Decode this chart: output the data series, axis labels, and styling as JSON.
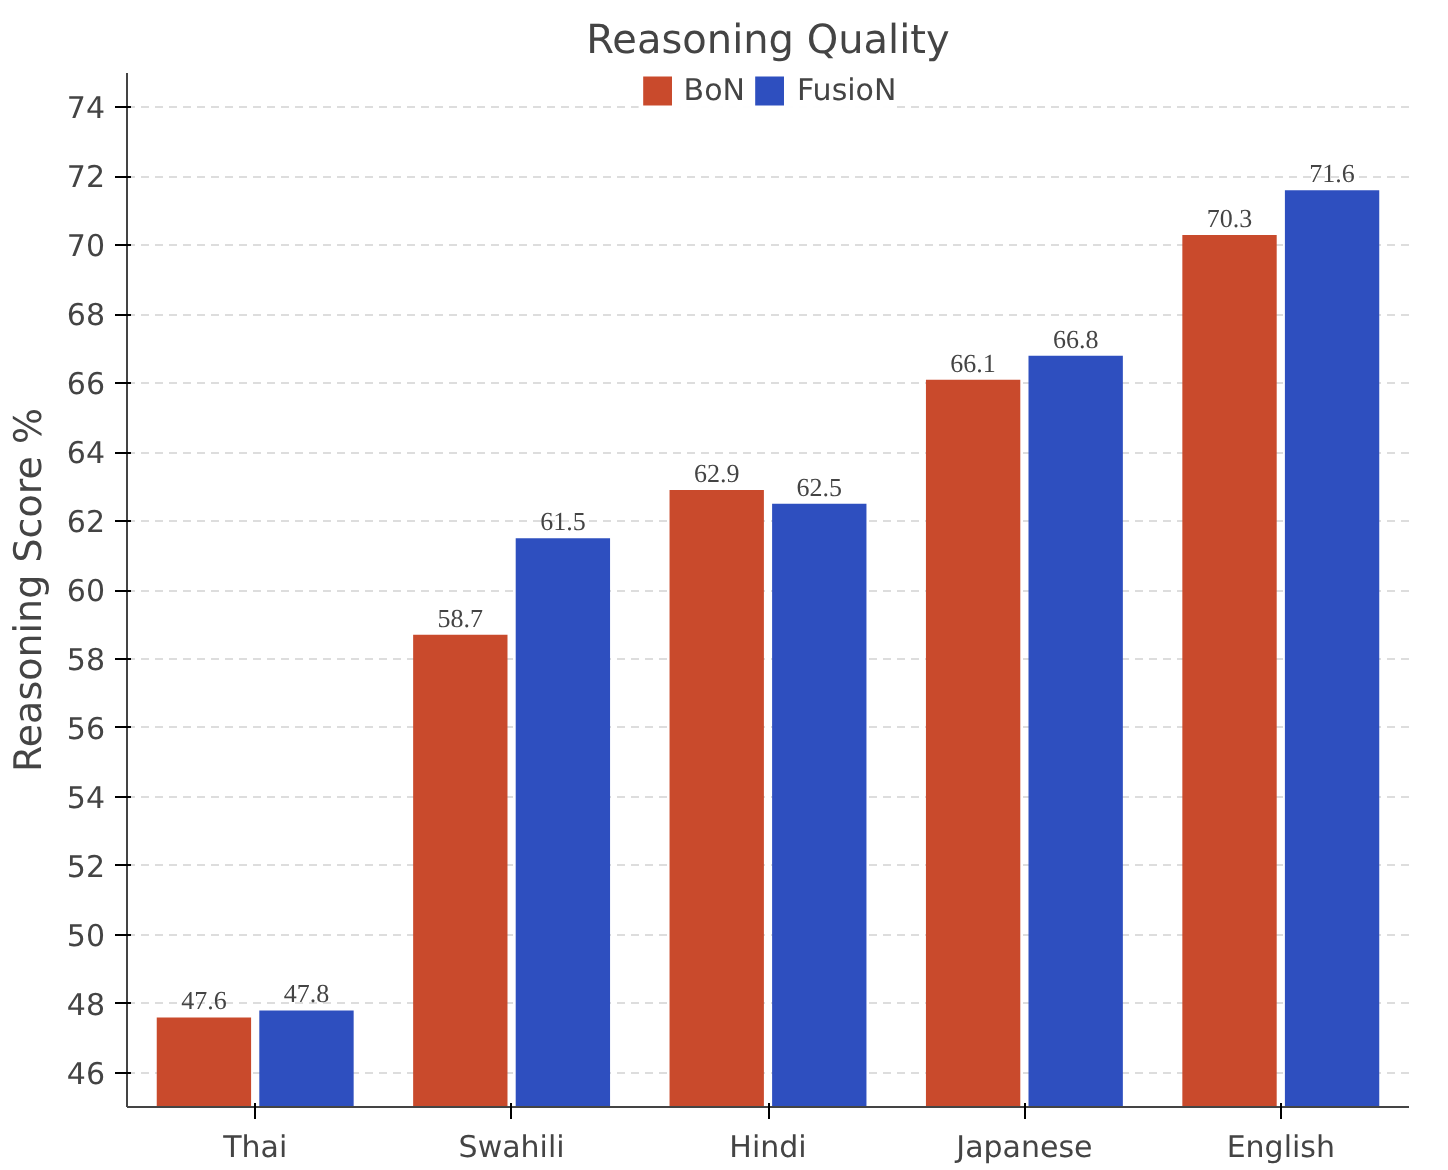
{
  "chart_data": {
    "type": "bar",
    "title": "Reasoning Quality",
    "ylabel": "Reasoning Score %",
    "categories": [
      "Thai",
      "Swahili",
      "Hindi",
      "Japanese",
      "English"
    ],
    "series": [
      {
        "name": "BoN",
        "color": "#c94a2c",
        "values": [
          47.6,
          58.7,
          62.9,
          66.1,
          70.3
        ]
      },
      {
        "name": "FusioN",
        "color": "#2e4fbf",
        "values": [
          47.8,
          61.5,
          62.5,
          66.8,
          71.6
        ]
      }
    ],
    "ylim": [
      45,
      75
    ],
    "yticks": [
      46,
      48,
      50,
      52,
      54,
      56,
      58,
      60,
      62,
      64,
      66,
      68,
      70,
      72,
      74
    ],
    "grid": "y",
    "legend": "top",
    "data_labels": true
  }
}
